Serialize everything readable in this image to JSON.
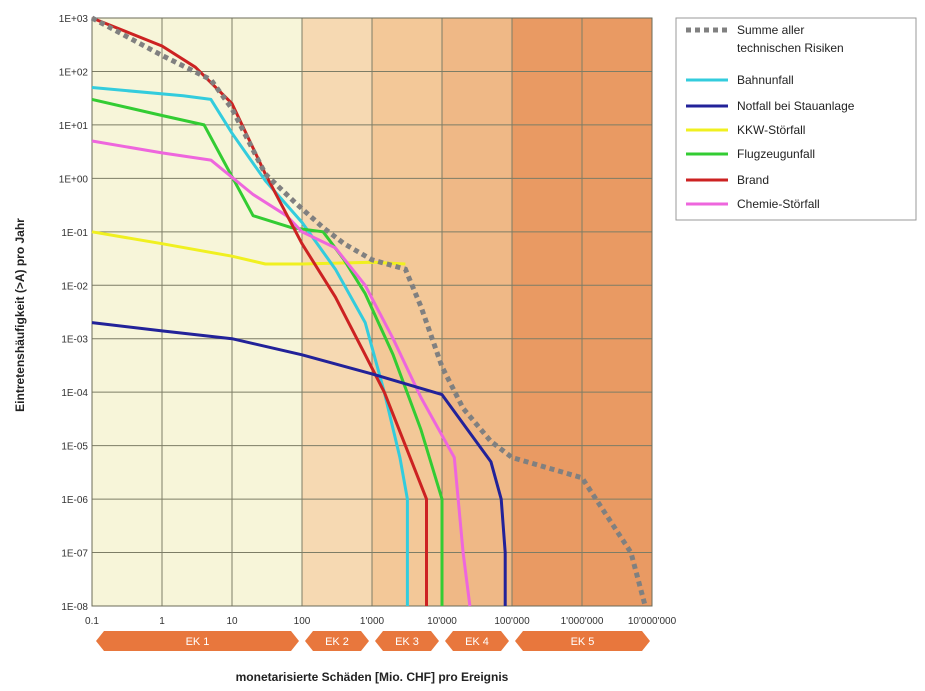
{
  "chart_data": {
    "type": "line",
    "x_scale": "log",
    "y_scale": "log",
    "xlabel": "monetarisierte Schäden [Mio. CHF] pro Ereignis",
    "ylabel": "Eintretenshäufigkeit (>A) pro Jahr",
    "xlim": [
      0.1,
      10000000
    ],
    "ylim": [
      1e-08,
      1000
    ],
    "x_ticks": [
      "0.1",
      "1",
      "10",
      "100",
      "1'000",
      "10'000",
      "100'000",
      "1'000'000",
      "10'000'000"
    ],
    "y_ticks": [
      "1E+03",
      "1E+02",
      "1E+01",
      "1E+00",
      "1E-01",
      "1E-02",
      "1E-03",
      "1E-04",
      "1E-05",
      "1E-06",
      "1E-07",
      "1E-08"
    ],
    "grid": true,
    "legend_position": "right",
    "damage_classes": [
      {
        "label": "EK 1",
        "x_range": [
          0.1,
          100
        ],
        "color": "#f7f5d9"
      },
      {
        "label": "EK 2",
        "x_range": [
          100,
          1000
        ],
        "color": "#f6d9b2"
      },
      {
        "label": "EK 3",
        "x_range": [
          1000,
          10000
        ],
        "color": "#f3c898"
      },
      {
        "label": "EK 4",
        "x_range": [
          10000,
          100000
        ],
        "color": "#efb886"
      },
      {
        "label": "EK 5",
        "x_range": [
          100000,
          10000000
        ],
        "color": "#e99a63"
      }
    ],
    "series": [
      {
        "name": "Summe aller technischen Risiken",
        "color": "#808080",
        "style": "dotted",
        "points": [
          [
            0.1,
            1000
          ],
          [
            1,
            200
          ],
          [
            5,
            70
          ],
          [
            10,
            20
          ],
          [
            30,
            1.2
          ],
          [
            80,
            0.35
          ],
          [
            200,
            0.12
          ],
          [
            400,
            0.06
          ],
          [
            1000,
            0.03
          ],
          [
            3000,
            0.02
          ],
          [
            5000,
            0.004
          ],
          [
            10000,
            0.0003
          ],
          [
            20000,
            5e-05
          ],
          [
            50000,
            1.2e-05
          ],
          [
            100000,
            6e-06
          ],
          [
            1000000,
            2.5e-06
          ],
          [
            5000000,
            1e-07
          ],
          [
            8000000,
            1e-08
          ]
        ]
      },
      {
        "name": "Bahnunfall",
        "color": "#33ccdd",
        "style": "solid",
        "points": [
          [
            0.1,
            50
          ],
          [
            2,
            35
          ],
          [
            5,
            30
          ],
          [
            10,
            7
          ],
          [
            30,
            0.9
          ],
          [
            100,
            0.15
          ],
          [
            300,
            0.02
          ],
          [
            800,
            0.002
          ],
          [
            1500,
            0.0001
          ],
          [
            2500,
            6e-06
          ],
          [
            3200,
            1e-06
          ],
          [
            3200,
            1e-08
          ]
        ]
      },
      {
        "name": "Notfall bei Stauanlage",
        "color": "#222299",
        "style": "solid",
        "points": [
          [
            0.1,
            0.002
          ],
          [
            1,
            0.0014
          ],
          [
            10,
            0.001
          ],
          [
            100,
            0.0005
          ],
          [
            1000,
            0.00022
          ],
          [
            10000,
            9e-05
          ],
          [
            50000,
            5e-06
          ],
          [
            70000,
            1e-06
          ],
          [
            80000,
            1e-07
          ],
          [
            80000,
            1e-08
          ]
        ]
      },
      {
        "name": "KKW-Störfall",
        "color": "#f0f020",
        "style": "solid",
        "points": [
          [
            0.1,
            0.1
          ],
          [
            1,
            0.06
          ],
          [
            10,
            0.035
          ],
          [
            30,
            0.025
          ],
          [
            100,
            0.025
          ],
          [
            1000,
            0.027
          ],
          [
            3000,
            0.025
          ]
        ]
      },
      {
        "name": "Flugzeugunfall",
        "color": "#33cc33",
        "style": "solid",
        "points": [
          [
            0.1,
            30
          ],
          [
            1,
            15
          ],
          [
            4,
            10
          ],
          [
            20,
            0.2
          ],
          [
            70,
            0.12
          ],
          [
            200,
            0.1
          ],
          [
            400,
            0.03
          ],
          [
            800,
            0.007
          ],
          [
            2000,
            0.0005
          ],
          [
            5000,
            2e-05
          ],
          [
            10000,
            1e-06
          ],
          [
            10000,
            1e-08
          ]
        ]
      },
      {
        "name": "Brand",
        "color": "#cc2222",
        "style": "solid",
        "points": [
          [
            0.1,
            1000
          ],
          [
            1,
            300
          ],
          [
            3,
            120
          ],
          [
            10,
            25
          ],
          [
            30,
            1.2
          ],
          [
            100,
            0.06
          ],
          [
            300,
            0.006
          ],
          [
            800,
            0.0005
          ],
          [
            1500,
            0.0001
          ],
          [
            3000,
            1e-05
          ],
          [
            6000,
            1e-06
          ],
          [
            6000,
            1e-08
          ]
        ]
      },
      {
        "name": "Chemie-Störfall",
        "color": "#ee66dd",
        "style": "solid",
        "points": [
          [
            0.1,
            5
          ],
          [
            1,
            3
          ],
          [
            5,
            2.2
          ],
          [
            20,
            0.5
          ],
          [
            60,
            0.2
          ],
          [
            100,
            0.1
          ],
          [
            300,
            0.05
          ],
          [
            800,
            0.01
          ],
          [
            2000,
            0.001
          ],
          [
            5000,
            8e-05
          ],
          [
            15000,
            6e-06
          ],
          [
            20000,
            1e-07
          ],
          [
            25000,
            1e-08
          ]
        ]
      }
    ]
  }
}
